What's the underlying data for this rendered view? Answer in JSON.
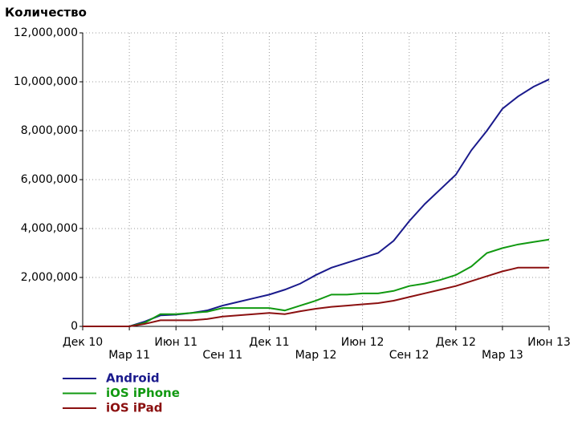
{
  "chart_data": {
    "type": "line",
    "title": "Количество",
    "categories": [
      "Дек 10",
      null,
      null,
      "Мар 11",
      null,
      null,
      "Июн 11",
      null,
      null,
      "Сен 11",
      null,
      null,
      "Дек 11",
      null,
      null,
      "Мар 12",
      null,
      null,
      "Июн 12",
      null,
      null,
      "Сен 12",
      null,
      null,
      "Дек 12",
      null,
      null,
      "Мар 13",
      null,
      null,
      "Июн 13"
    ],
    "series": [
      {
        "name": "Android",
        "color": "#1a1a8c",
        "values": [
          0,
          0,
          0,
          0,
          200000,
          450000,
          480000,
          550000,
          650000,
          850000,
          1000000,
          1150000,
          1300000,
          1500000,
          1750000,
          2100000,
          2400000,
          2600000,
          2800000,
          3000000,
          3500000,
          4300000,
          5000000,
          5600000,
          6200000,
          7200000,
          8000000,
          8900000,
          9400000,
          9800000,
          10100000
        ]
      },
      {
        "name": "iOS iPhone",
        "color": "#119911",
        "values": [
          0,
          0,
          0,
          0,
          150000,
          500000,
          500000,
          550000,
          600000,
          750000,
          750000,
          750000,
          750000,
          650000,
          850000,
          1050000,
          1300000,
          1300000,
          1350000,
          1350000,
          1450000,
          1650000,
          1750000,
          1900000,
          2100000,
          2450000,
          3000000,
          3200000,
          3350000,
          3450000,
          3550000
        ]
      },
      {
        "name": "iOS iPad",
        "color": "#8b1010",
        "values": [
          0,
          0,
          0,
          0,
          100000,
          250000,
          250000,
          250000,
          300000,
          400000,
          450000,
          500000,
          550000,
          500000,
          620000,
          720000,
          800000,
          850000,
          900000,
          950000,
          1050000,
          1200000,
          1350000,
          1500000,
          1650000,
          1850000,
          2050000,
          2250000,
          2400000,
          2400000,
          2400000
        ]
      }
    ],
    "ylim": [
      0,
      12000000
    ],
    "yticks": [
      0,
      {
        "value": 2000000,
        "label": "2,000,000"
      },
      {
        "value": 4000000,
        "label": "4,000,000"
      },
      {
        "value": 6000000,
        "label": "6,000,000"
      },
      {
        "value": 8000000,
        "label": "8,000,000"
      },
      {
        "value": 10000000,
        "label": "10,000,000"
      },
      {
        "value": 12000000,
        "label": "12,000,000"
      }
    ],
    "grid": true
  }
}
